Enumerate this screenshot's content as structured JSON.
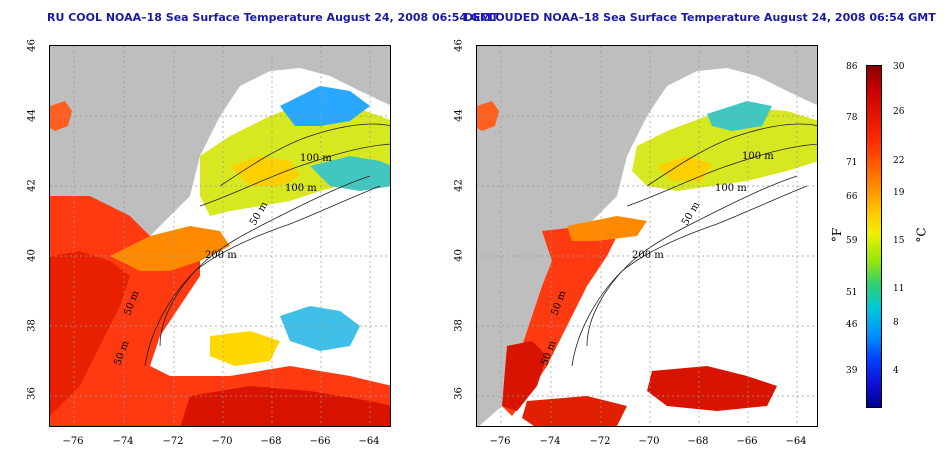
{
  "titles": {
    "left": "RU COOL NOAA–18 Sea Surface Temperature August 24, 2008 06:54 GMT",
    "right": "DECLOUDED NOAA–18 Sea Surface Temperature August 24, 2008 06:54 GMT"
  },
  "axes": {
    "lat_ticks": [
      "46",
      "44",
      "42",
      "40",
      "38",
      "36"
    ],
    "lon_ticks": [
      "−76",
      "−74",
      "−72",
      "−70",
      "−68",
      "−66",
      "−64"
    ]
  },
  "contour_labels": [
    "100 m",
    "100 m",
    "50 m",
    "200 m",
    "50 m",
    "50 m"
  ],
  "colorbar": {
    "fahrenheit": [
      "86",
      "78",
      "71",
      "66",
      "59",
      "51",
      "46",
      "39"
    ],
    "celsius": [
      "30",
      "26",
      "22",
      "19",
      "15",
      "11",
      "8",
      "4"
    ],
    "f_unit": "°F",
    "c_unit": "°C"
  },
  "colors": {
    "land": "#bebebe",
    "cloud": "#ffffff",
    "title": "#1a1aa8"
  }
}
